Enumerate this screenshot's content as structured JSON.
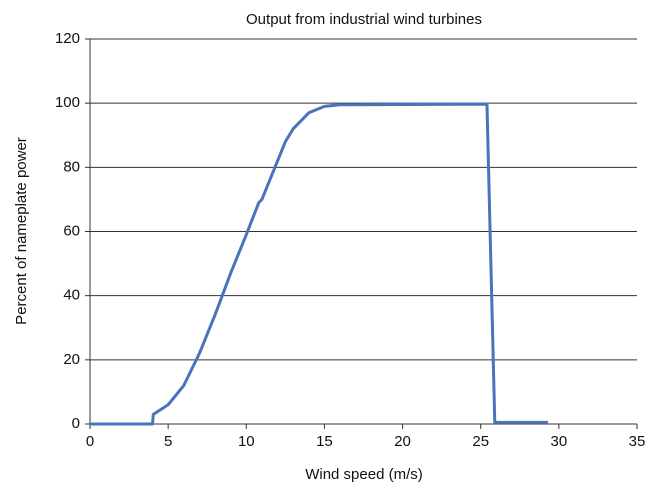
{
  "chart_data": {
    "type": "line",
    "title": "Output from industrial wind turbines",
    "x_label": "Wind speed (m/s)",
    "y_label": "Percent of nameplate power",
    "x": [
      0,
      4,
      4.05,
      5,
      6,
      7,
      8,
      9,
      10,
      10.8,
      11,
      12,
      12.5,
      13,
      14,
      15,
      16,
      25.4,
      25.9,
      29.3
    ],
    "series": [
      {
        "name": "Output",
        "color": "#4a72bd",
        "values": [
          0,
          0,
          3,
          6,
          12,
          22,
          34,
          47,
          59,
          69,
          70,
          82,
          88,
          92,
          97,
          99,
          99.5,
          99.7,
          0.5,
          0.5
        ]
      }
    ],
    "xlim": [
      0,
      35
    ],
    "xticks": [
      0,
      5,
      10,
      15,
      20,
      25,
      30,
      35
    ],
    "ylim": [
      0,
      120
    ],
    "yticks": [
      0,
      20,
      40,
      60,
      80,
      100,
      120
    ],
    "grid": true
  }
}
